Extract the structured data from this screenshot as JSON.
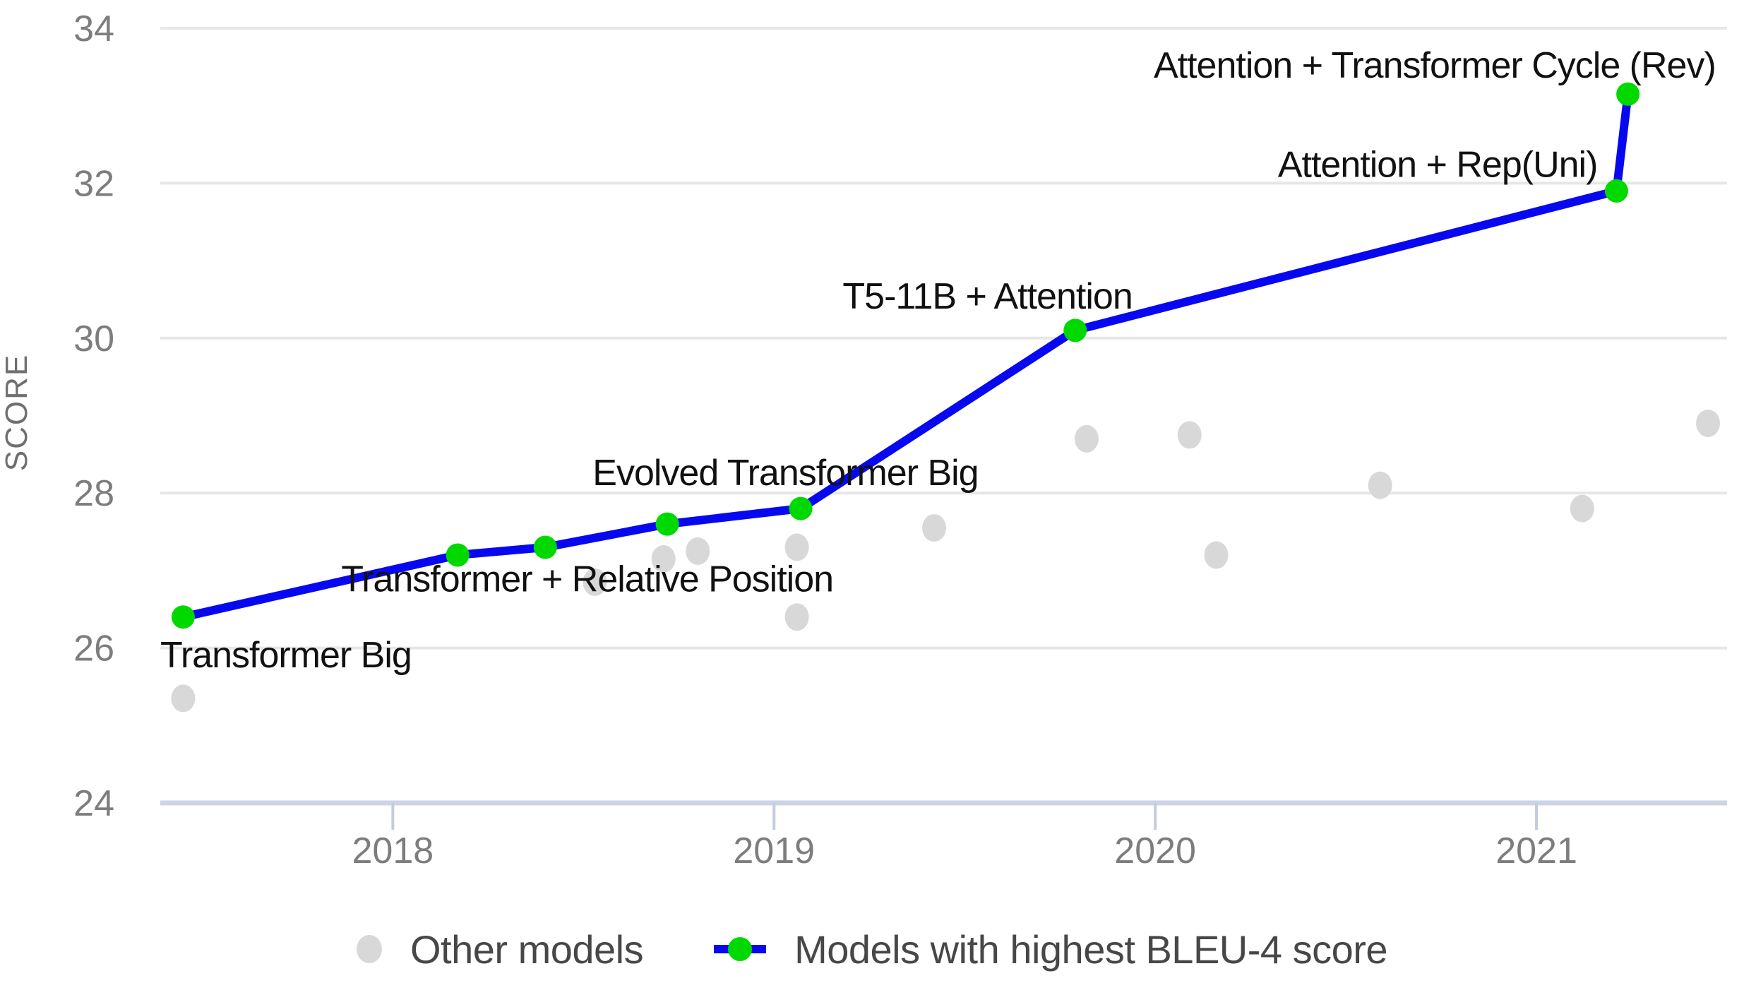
{
  "colors": {
    "background": "#ffffff",
    "gridline": "#e7e7e7",
    "axis_line": "#ccd4e6",
    "tick_label": "#7d7d7d",
    "annotation_text": "#111111",
    "sota_line_blue": "#0808f0",
    "sota_marker_green": "#00d900",
    "other_marker_gray": "#d8d8d8"
  },
  "chart_data": {
    "type": "line",
    "title": "",
    "xlabel": "",
    "ylabel": "SCORE",
    "grid": "horizontal-only",
    "legend_position": "bottom-center",
    "x_axis": {
      "range": [
        2017.39,
        2021.5
      ],
      "ticks": [
        {
          "value": 2018,
          "label": "2018"
        },
        {
          "value": 2019,
          "label": "2019"
        },
        {
          "value": 2020,
          "label": "2020"
        },
        {
          "value": 2021,
          "label": "2021"
        }
      ]
    },
    "y_axis": {
      "range": [
        24,
        34
      ],
      "ticks": [
        {
          "value": 34,
          "label": "34",
          "gridline": true
        },
        {
          "value": 32,
          "label": "32",
          "gridline": true
        },
        {
          "value": 30,
          "label": "30",
          "gridline": true
        },
        {
          "value": 28,
          "label": "28",
          "gridline": true
        },
        {
          "value": 26,
          "label": "26",
          "gridline": true
        },
        {
          "value": 24,
          "label": "24",
          "gridline": false
        }
      ]
    },
    "series": [
      {
        "name": "Other models",
        "type": "scatter",
        "color": "#d8d8d8",
        "points": [
          {
            "x": 2017.45,
            "y": 25.35
          },
          {
            "x": 2018.53,
            "y": 26.85
          },
          {
            "x": 2018.71,
            "y": 27.15
          },
          {
            "x": 2018.8,
            "y": 27.25
          },
          {
            "x": 2019.06,
            "y": 27.3
          },
          {
            "x": 2019.06,
            "y": 26.4
          },
          {
            "x": 2019.42,
            "y": 27.55
          },
          {
            "x": 2019.82,
            "y": 28.7
          },
          {
            "x": 2020.09,
            "y": 28.75
          },
          {
            "x": 2020.16,
            "y": 27.2
          },
          {
            "x": 2020.59,
            "y": 28.1
          },
          {
            "x": 2021.12,
            "y": 27.8
          },
          {
            "x": 2021.45,
            "y": 28.9
          }
        ]
      },
      {
        "name": "Models with highest BLEU-4 score",
        "type": "line+scatter",
        "line_color": "#0808f0",
        "marker_color": "#00d900",
        "points": [
          {
            "x": 2017.45,
            "y": 26.4,
            "label": "Transformer Big"
          },
          {
            "x": 2018.17,
            "y": 27.2,
            "label": "Transformer + Relative Position"
          },
          {
            "x": 2018.4,
            "y": 27.3,
            "label": ""
          },
          {
            "x": 2018.72,
            "y": 27.6,
            "label": ""
          },
          {
            "x": 2019.07,
            "y": 27.8,
            "label": "Evolved Transformer Big"
          },
          {
            "x": 2019.79,
            "y": 30.1,
            "label": "T5-11B + Attention"
          },
          {
            "x": 2021.21,
            "y": 31.9,
            "label": "Attention + Rep(Uni)"
          },
          {
            "x": 2021.24,
            "y": 33.15,
            "label": "Attention + Transformer Cycle (Rev)"
          }
        ]
      }
    ],
    "annotations": [
      {
        "text": "Transformer Big",
        "x": 2017.39,
        "y": 25.75,
        "anchor": "start"
      },
      {
        "text": "Transformer + Relative Position",
        "x": 2018.51,
        "y": 26.73,
        "anchor": "middle"
      },
      {
        "text": "Evolved Transformer Big",
        "x": 2019.03,
        "y": 28.1,
        "anchor": "middle"
      },
      {
        "text": "T5-11B + Attention",
        "x": 2019.56,
        "y": 30.38,
        "anchor": "middle"
      },
      {
        "text": "Attention + Rep(Uni)",
        "x": 2021.16,
        "y": 32.08,
        "anchor": "end"
      },
      {
        "text": "Attention + Transformer Cycle (Rev)",
        "x": 2021.47,
        "y": 33.36,
        "anchor": "end"
      }
    ]
  },
  "legend": {
    "items": [
      {
        "label": "Other models",
        "marker": "gray-dot"
      },
      {
        "label": "Models with highest BLEU-4 score",
        "marker": "blue-line-green-dot"
      }
    ]
  }
}
